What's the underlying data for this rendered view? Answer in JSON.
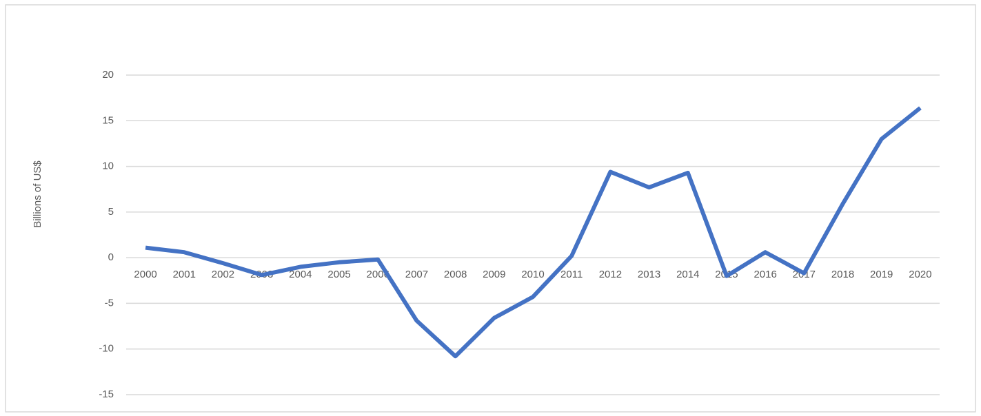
{
  "chart_data": {
    "type": "line",
    "y_label": "Billions of US$",
    "categories": [
      "2000",
      "2001",
      "2002",
      "2003",
      "2004",
      "2005",
      "2006",
      "2007",
      "2008",
      "2009",
      "2010",
      "2011",
      "2012",
      "2013",
      "2014",
      "2015",
      "2016",
      "2017",
      "2018",
      "2019",
      "2020"
    ],
    "series": [
      {
        "color": "#4472c4",
        "values": [
          1.1,
          0.6,
          -0.6,
          -1.9,
          -1.0,
          -0.5,
          -0.2,
          -6.9,
          -10.8,
          -6.6,
          -4.3,
          0.2,
          9.4,
          7.7,
          9.3,
          -2.0,
          0.6,
          -1.7,
          5.9,
          13.0,
          16.4
        ]
      }
    ],
    "ylim": [
      -15,
      20
    ],
    "yticks": [
      -15,
      -10,
      -5,
      0,
      5,
      10,
      15,
      20
    ],
    "grid": true
  }
}
